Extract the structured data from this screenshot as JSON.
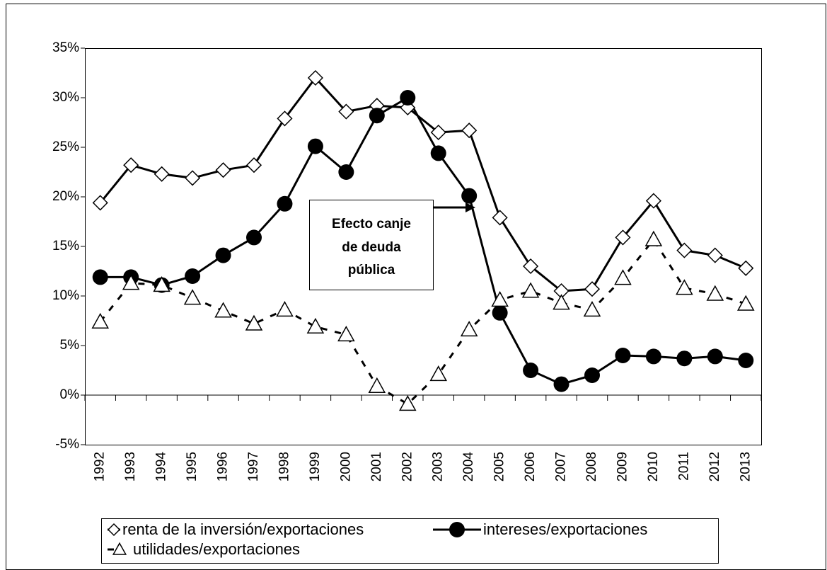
{
  "chart_data": {
    "type": "line",
    "categories": [
      "1992",
      "1993",
      "1994",
      "1995",
      "1996",
      "1997",
      "1998",
      "1999",
      "2000",
      "2001",
      "2002",
      "2003",
      "2004",
      "2005",
      "2006",
      "2007",
      "2008",
      "2009",
      "2010",
      "2011",
      "2012",
      "2013"
    ],
    "series": [
      {
        "name": "renta de la inversión/exportaciones",
        "color": "#000000",
        "marker": "diamond",
        "dashed": false,
        "values": [
          19.4,
          23.2,
          22.3,
          21.9,
          22.7,
          23.2,
          27.9,
          32.0,
          28.6,
          29.2,
          29.0,
          26.5,
          26.7,
          17.9,
          13.0,
          10.5,
          10.7,
          15.9,
          19.6,
          14.6,
          14.1,
          12.8
        ]
      },
      {
        "name": "intereses/exportaciones",
        "color": "#000000",
        "marker": "circle",
        "dashed": false,
        "values": [
          11.9,
          11.9,
          11.1,
          12.0,
          14.1,
          15.9,
          19.3,
          25.1,
          22.5,
          28.2,
          30.0,
          24.4,
          20.1,
          8.3,
          2.5,
          1.1,
          2.0,
          4.0,
          3.9,
          3.7,
          3.9,
          3.5
        ]
      },
      {
        "name": "utilidades/exportaciones",
        "color": "#000000",
        "marker": "triangle",
        "dashed": true,
        "values": [
          7.4,
          11.3,
          11.1,
          9.8,
          8.5,
          7.2,
          8.6,
          6.9,
          6.1,
          0.9,
          -0.9,
          2.1,
          6.6,
          9.6,
          10.5,
          9.3,
          8.6,
          11.8,
          15.7,
          10.8,
          10.2,
          9.2
        ]
      }
    ],
    "ylim": [
      -5,
      35
    ],
    "yticks": [
      {
        "value": -5,
        "label": "-5%"
      },
      {
        "value": 0,
        "label": "0%"
      },
      {
        "value": 5,
        "label": "5%"
      },
      {
        "value": 10,
        "label": "10%"
      },
      {
        "value": 15,
        "label": "15%"
      },
      {
        "value": 20,
        "label": "20%"
      },
      {
        "value": 25,
        "label": "25%"
      },
      {
        "value": 30,
        "label": "30%"
      },
      {
        "value": 35,
        "label": "35%"
      }
    ],
    "grid": false,
    "annotation": [
      "Efecto canje",
      "de deuda",
      "pública"
    ]
  }
}
